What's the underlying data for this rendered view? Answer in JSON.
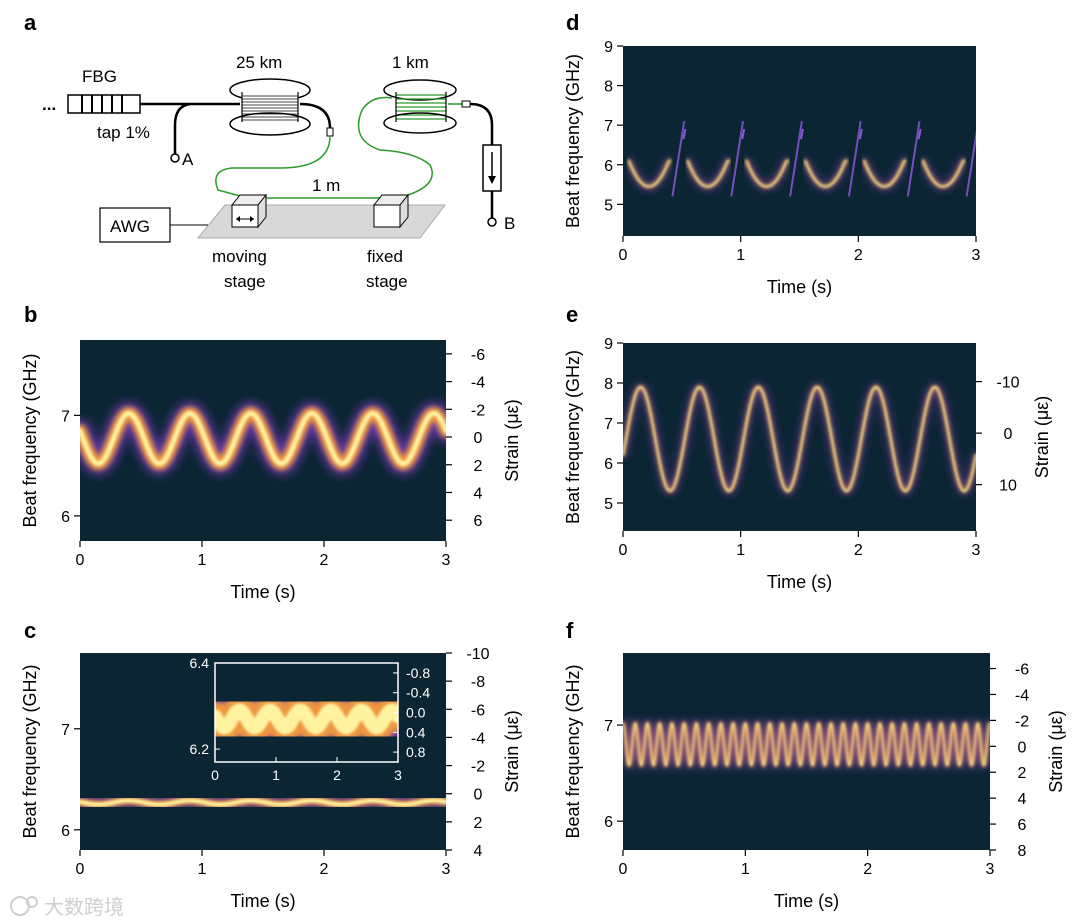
{
  "panels": {
    "a": {
      "letter": "a",
      "labels": {
        "dots": "...",
        "fbg": "FBG",
        "tap": "tap 1%",
        "spool1": "25 km",
        "spool2": "1 km",
        "point_a": "A",
        "point_b": "B",
        "distance": "1 m",
        "awg": "AWG",
        "moving1": "moving",
        "moving2": "stage",
        "fixed1": "fixed",
        "fixed2": "stage"
      }
    },
    "b": {
      "letter": "b",
      "y_ticks": [
        "7",
        "6"
      ],
      "x_ticks": [
        "0",
        "1",
        "2",
        "3"
      ],
      "strain_ticks": [
        "-6",
        "-4",
        "-2",
        "0",
        "2",
        "4",
        "6"
      ],
      "ylabel": "Beat frequency (GHz)",
      "xlabel": "Time (s)",
      "y2label": "Strain (με)"
    },
    "c": {
      "letter": "c",
      "y_ticks": [
        "7",
        "6"
      ],
      "x_ticks": [
        "0",
        "1",
        "2",
        "3"
      ],
      "strain_ticks": [
        "-10",
        "-8",
        "-6",
        "-4",
        "-2",
        "0",
        "2",
        "4"
      ],
      "ylabel": "Beat frequency (GHz)",
      "xlabel": "Time (s)",
      "y2label": "Strain (με)",
      "inset": {
        "y_ticks": [
          "6.4",
          "6.2"
        ],
        "x_ticks": [
          "0",
          "1",
          "2",
          "3"
        ],
        "strain_ticks": [
          "-0.8",
          "-0.4",
          "0.0",
          "0.4",
          "0.8"
        ]
      }
    },
    "d": {
      "letter": "d",
      "y_ticks": [
        "9",
        "8",
        "7",
        "6",
        "5"
      ],
      "x_ticks": [
        "0",
        "1",
        "2",
        "3"
      ],
      "ylabel": "Beat frequency (GHz)",
      "xlabel": "Time (s)"
    },
    "e": {
      "letter": "e",
      "y_ticks": [
        "9",
        "8",
        "7",
        "6",
        "5"
      ],
      "x_ticks": [
        "0",
        "1",
        "2",
        "3"
      ],
      "strain_ticks": [
        "-10",
        "0",
        "10"
      ],
      "ylabel": "Beat frequency (GHz)",
      "xlabel": "Time (s)",
      "y2label": "Strain (με)"
    },
    "f": {
      "letter": "f",
      "y_ticks": [
        "7",
        "6"
      ],
      "x_ticks": [
        "0",
        "1",
        "2",
        "3"
      ],
      "strain_ticks": [
        "-6",
        "-4",
        "-2",
        "0",
        "2",
        "4",
        "6",
        "8"
      ],
      "ylabel": "Beat frequency (GHz)",
      "xlabel": "Time (s)",
      "y2label": "Strain (με)"
    }
  },
  "watermark": "大数跨境",
  "colors": {
    "background": "#0b2533",
    "trace_core": "#fff3a0",
    "trace_mid": "#f59c3d",
    "trace_edge": "#7a3bbf",
    "inset_box": "#ffffff"
  },
  "chart_data": [
    {
      "panel": "b",
      "type": "heatmap",
      "xlabel": "Time (s)",
      "ylabel": "Beat frequency (GHz)",
      "y2label": "Strain (με)",
      "xlim": [
        0,
        3
      ],
      "ylim": [
        5.75,
        7.75
      ],
      "y2lim": [
        7.5,
        -7
      ],
      "trace": {
        "center": 6.77,
        "amplitude": 0.25,
        "period": 0.5,
        "phase_peak_at": 0.4
      }
    },
    {
      "panel": "c",
      "type": "heatmap",
      "xlabel": "Time (s)",
      "ylabel": "Beat frequency (GHz)",
      "y2label": "Strain (με)",
      "xlim": [
        0,
        3
      ],
      "ylim": [
        5.8,
        7.75
      ],
      "y2lim": [
        4,
        -10
      ],
      "trace": {
        "center": 6.27,
        "amplitude": 0.02,
        "period": 0.5,
        "phase_peak_at": 0.4
      },
      "inset": {
        "xlim": [
          0,
          3
        ],
        "ylim": [
          6.17,
          6.4
        ],
        "y2lim": [
          1.0,
          -1.0
        ],
        "trace": {
          "center": 6.27,
          "amplitude": 0.02,
          "period": 0.5
        }
      }
    },
    {
      "panel": "d",
      "type": "heatmap",
      "xlabel": "Time (s)",
      "ylabel": "Beat frequency (GHz)",
      "xlim": [
        0,
        3
      ],
      "ylim": [
        4.2,
        9
      ],
      "trace": {
        "style": "fragmented",
        "low": 5.45,
        "high": 6.1,
        "period": 0.5,
        "upper_ghost": 6.8
      }
    },
    {
      "panel": "e",
      "type": "heatmap",
      "xlabel": "Time (s)",
      "ylabel": "Beat frequency (GHz)",
      "y2label": "Strain (με)",
      "xlim": [
        0,
        3
      ],
      "ylim": [
        4.3,
        9
      ],
      "y2lim": [
        19,
        -17.5
      ],
      "trace": {
        "center": 6.6,
        "amplitude": 1.3,
        "period": 0.5,
        "phase_peak_at": 0.15
      }
    },
    {
      "panel": "f",
      "type": "heatmap",
      "xlabel": "Time (s)",
      "ylabel": "Beat frequency (GHz)",
      "y2label": "Strain (με)",
      "xlim": [
        0,
        3
      ],
      "ylim": [
        5.7,
        7.75
      ],
      "y2lim": [
        8,
        -7.2
      ],
      "trace": {
        "center": 6.8,
        "amplitude": 0.22,
        "period": 0.1,
        "phase_peak_at": 0.0
      }
    }
  ]
}
